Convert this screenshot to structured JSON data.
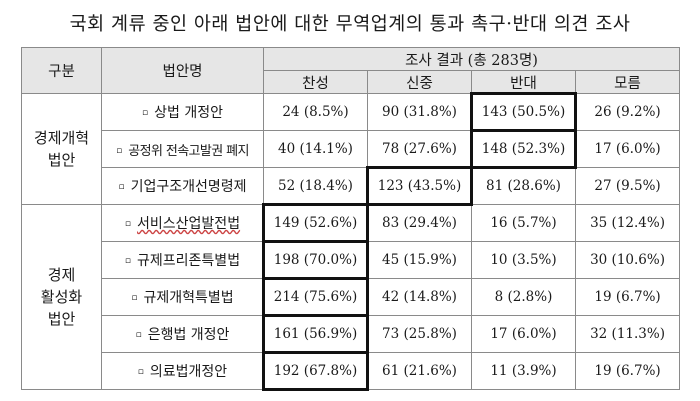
{
  "title": "국회 계류 중인 아래 법안에 대한 무역업계의 통과 촉구·반대 의견 조사",
  "table": {
    "col_group": "구분",
    "col_bill": "법안명",
    "col_result": "조사 결과 (총 283명)",
    "col_agree": "찬성",
    "col_caution": "신중",
    "col_oppose": "반대",
    "col_unknown": "모름",
    "groups": [
      {
        "label_line1": "경제개혁",
        "label_line2": "법안",
        "label_line3": ""
      },
      {
        "label_line1": "경제",
        "label_line2": "활성화",
        "label_line3": "법안"
      }
    ],
    "rows": [
      {
        "bullet": "▫",
        "name": "상법 개정안",
        "agree": "24 (8.5%)",
        "caution": "90 (31.8%)",
        "oppose": "143 (50.5%)",
        "unknown": "26 (9.2%)"
      },
      {
        "bullet": "▫",
        "name": "공정위 전속고발권 폐지",
        "agree": "40 (14.1%)",
        "caution": "78 (27.6%)",
        "oppose": "148 (52.3%)",
        "unknown": "17 (6.0%)"
      },
      {
        "bullet": "▫",
        "name": "기업구조개선명령제",
        "agree": "52 (18.4%)",
        "caution": "123 (43.5%)",
        "oppose": "81 (28.6%)",
        "unknown": "27 (9.5%)"
      },
      {
        "bullet": "▫",
        "name": "서비스산업발전법",
        "agree": "149 (52.6%)",
        "caution": "83 (29.4%)",
        "oppose": "16 (5.7%)",
        "unknown": "35 (12.4%)"
      },
      {
        "bullet": "▫",
        "name": "규제프리존특별법",
        "agree": "198 (70.0%)",
        "caution": "45 (15.9%)",
        "oppose": "10 (3.5%)",
        "unknown": "30 (10.6%)"
      },
      {
        "bullet": "▫",
        "name": "규제개혁특별법",
        "agree": "214 (75.6%)",
        "caution": "42 (14.8%)",
        "oppose": "8 (2.8%)",
        "unknown": "19 (6.7%)"
      },
      {
        "bullet": "▫",
        "name": "은행법 개정안",
        "agree": "161 (56.9%)",
        "caution": "73 (25.8%)",
        "oppose": "17 (6.0%)",
        "unknown": "32 (11.3%)"
      },
      {
        "bullet": "▫",
        "name": "의료법개정안",
        "agree": "192 (67.8%)",
        "caution": "61 (21.6%)",
        "oppose": "11 (3.9%)",
        "unknown": "19 (6.7%)"
      }
    ]
  }
}
